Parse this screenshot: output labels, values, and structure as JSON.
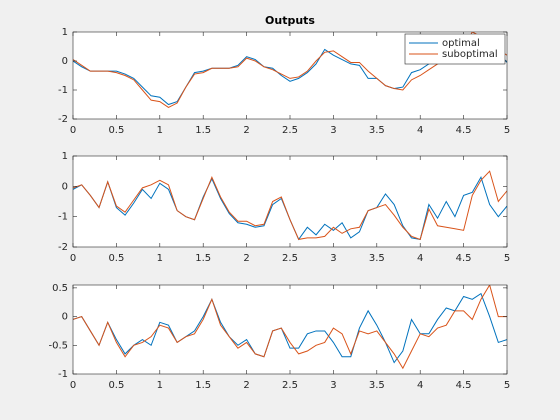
{
  "chart_data": [
    {
      "type": "line",
      "title": "Outputs",
      "x": [
        0,
        0.1,
        0.2,
        0.3,
        0.4,
        0.5,
        0.6,
        0.7,
        0.8,
        0.9,
        1,
        1.1,
        1.2,
        1.3,
        1.4,
        1.5,
        1.6,
        1.7,
        1.8,
        1.9,
        2,
        2.1,
        2.2,
        2.3,
        2.4,
        2.5,
        2.6,
        2.7,
        2.8,
        2.9,
        3,
        3.1,
        3.2,
        3.3,
        3.4,
        3.5,
        3.6,
        3.7,
        3.8,
        3.9,
        4,
        4.1,
        4.2,
        4.3,
        4.4,
        4.5,
        4.6,
        4.7,
        4.8,
        4.9,
        5
      ],
      "series": [
        {
          "name": "optimal",
          "color": "#0072bd",
          "values": [
            0,
            -0.2,
            -0.35,
            -0.35,
            -0.35,
            -0.35,
            -0.45,
            -0.6,
            -0.9,
            -1.2,
            -1.25,
            -1.5,
            -1.4,
            -0.9,
            -0.4,
            -0.35,
            -0.25,
            -0.25,
            -0.25,
            -0.15,
            0.15,
            0.05,
            -0.2,
            -0.25,
            -0.5,
            -0.7,
            -0.6,
            -0.4,
            -0.1,
            0.4,
            0.2,
            0.05,
            -0.1,
            -0.15,
            -0.6,
            -0.6,
            -0.85,
            -0.95,
            -0.9,
            -0.4,
            -0.3,
            -0.1,
            0.2,
            0.2,
            0.3,
            0.6,
            0.8,
            0.9,
            0.6,
            0.3,
            -0.05
          ]
        },
        {
          "name": "suboptimal",
          "color": "#d95319",
          "values": [
            0.05,
            -0.15,
            -0.35,
            -0.35,
            -0.35,
            -0.4,
            -0.5,
            -0.65,
            -1.0,
            -1.35,
            -1.4,
            -1.6,
            -1.45,
            -0.9,
            -0.45,
            -0.4,
            -0.25,
            -0.25,
            -0.25,
            -0.2,
            0.1,
            0,
            -0.2,
            -0.3,
            -0.45,
            -0.6,
            -0.55,
            -0.35,
            0,
            0.3,
            0.35,
            0.15,
            -0.05,
            -0.05,
            -0.35,
            -0.6,
            -0.85,
            -0.95,
            -1.0,
            -0.65,
            -0.5,
            -0.3,
            -0.1,
            0.1,
            0.3,
            0.5,
            1.0,
            0.85,
            0.7,
            0.4,
            0.2
          ]
        }
      ],
      "xlim": [
        0,
        5
      ],
      "xticks": [
        0,
        0.5,
        1,
        1.5,
        2,
        2.5,
        3,
        3.5,
        4,
        4.5,
        5
      ],
      "ylim": [
        -2,
        1
      ],
      "yticks": [
        -2,
        -1,
        0,
        1
      ],
      "legend": "northeast"
    },
    {
      "type": "line",
      "x": [
        0,
        0.1,
        0.2,
        0.3,
        0.4,
        0.5,
        0.6,
        0.7,
        0.8,
        0.9,
        1,
        1.1,
        1.2,
        1.3,
        1.4,
        1.5,
        1.6,
        1.7,
        1.8,
        1.9,
        2,
        2.1,
        2.2,
        2.3,
        2.4,
        2.5,
        2.6,
        2.7,
        2.8,
        2.9,
        3,
        3.1,
        3.2,
        3.3,
        3.4,
        3.5,
        3.6,
        3.7,
        3.8,
        3.9,
        4,
        4.1,
        4.2,
        4.3,
        4.4,
        4.5,
        4.6,
        4.7,
        4.8,
        4.9,
        5
      ],
      "series": [
        {
          "color": "#0072bd",
          "values": [
            -0.1,
            0.05,
            -0.3,
            -0.7,
            0.15,
            -0.7,
            -0.95,
            -0.55,
            -0.1,
            -0.4,
            0.1,
            -0.1,
            -0.8,
            -1.0,
            -1.1,
            -0.35,
            0.25,
            -0.4,
            -0.9,
            -1.2,
            -1.25,
            -1.35,
            -1.3,
            -0.6,
            -0.4,
            -1.1,
            -1.75,
            -1.35,
            -1.6,
            -1.25,
            -1.45,
            -1.2,
            -1.7,
            -1.5,
            -0.8,
            -0.7,
            -0.25,
            -0.6,
            -1.3,
            -1.7,
            -1.75,
            -0.6,
            -1.05,
            -0.5,
            -1.0,
            -0.3,
            -0.2,
            0.3,
            -0.6,
            -1.0,
            -0.65
          ]
        },
        {
          "color": "#d95319",
          "values": [
            -0.05,
            0.05,
            -0.3,
            -0.7,
            0.15,
            -0.65,
            -0.85,
            -0.45,
            -0.05,
            0.05,
            0.2,
            0.05,
            -0.8,
            -1.0,
            -1.1,
            -0.4,
            0.3,
            -0.35,
            -0.85,
            -1.15,
            -1.15,
            -1.3,
            -1.25,
            -0.5,
            -0.35,
            -1.1,
            -1.75,
            -1.7,
            -1.7,
            -1.65,
            -1.35,
            -1.55,
            -1.4,
            -1.35,
            -0.8,
            -0.7,
            -0.6,
            -0.95,
            -1.35,
            -1.65,
            -1.75,
            -0.75,
            -1.3,
            -1.35,
            -1.4,
            -1.45,
            -0.3,
            0.2,
            0.5,
            -0.5,
            -0.15
          ]
        }
      ],
      "xlim": [
        0,
        5
      ],
      "xticks": [
        0,
        0.5,
        1,
        1.5,
        2,
        2.5,
        3,
        3.5,
        4,
        4.5,
        5
      ],
      "ylim": [
        -2,
        1
      ],
      "yticks": [
        -2,
        -1,
        0,
        1
      ]
    },
    {
      "type": "line",
      "x": [
        0,
        0.1,
        0.2,
        0.3,
        0.4,
        0.5,
        0.6,
        0.7,
        0.8,
        0.9,
        1,
        1.1,
        1.2,
        1.3,
        1.4,
        1.5,
        1.6,
        1.7,
        1.8,
        1.9,
        2,
        2.1,
        2.2,
        2.3,
        2.4,
        2.5,
        2.6,
        2.7,
        2.8,
        2.9,
        3,
        3.1,
        3.2,
        3.3,
        3.4,
        3.5,
        3.6,
        3.7,
        3.8,
        3.9,
        4,
        4.1,
        4.2,
        4.3,
        4.4,
        4.5,
        4.6,
        4.7,
        4.8,
        4.9,
        5
      ],
      "series": [
        {
          "color": "#0072bd",
          "values": [
            -0.05,
            0,
            -0.25,
            -0.5,
            -0.1,
            -0.4,
            -0.65,
            -0.5,
            -0.4,
            -0.5,
            -0.1,
            -0.15,
            -0.45,
            -0.35,
            -0.25,
            0,
            0.3,
            -0.1,
            -0.35,
            -0.5,
            -0.4,
            -0.65,
            -0.7,
            -0.25,
            -0.2,
            -0.55,
            -0.55,
            -0.3,
            -0.25,
            -0.25,
            -0.45,
            -0.7,
            -0.7,
            -0.2,
            0.1,
            -0.15,
            -0.45,
            -0.8,
            -0.6,
            -0.05,
            -0.3,
            -0.3,
            -0.05,
            0.15,
            0.1,
            0.35,
            0.3,
            0.4,
            0,
            -0.45,
            -0.4
          ]
        },
        {
          "color": "#d95319",
          "values": [
            -0.05,
            0,
            -0.25,
            -0.5,
            -0.1,
            -0.45,
            -0.7,
            -0.5,
            -0.45,
            -0.35,
            -0.15,
            -0.2,
            -0.45,
            -0.35,
            -0.3,
            -0.05,
            0.3,
            -0.15,
            -0.35,
            -0.55,
            -0.45,
            -0.65,
            -0.7,
            -0.25,
            -0.2,
            -0.45,
            -0.65,
            -0.6,
            -0.5,
            -0.45,
            -0.2,
            -0.3,
            -0.65,
            -0.25,
            -0.3,
            -0.25,
            -0.45,
            -0.65,
            -0.9,
            -0.6,
            -0.3,
            -0.35,
            -0.2,
            -0.15,
            0.1,
            0.1,
            -0.05,
            0.3,
            0.55,
            0,
            0
          ]
        }
      ],
      "xlim": [
        0,
        5
      ],
      "xticks": [
        0,
        0.5,
        1,
        1.5,
        2,
        2.5,
        3,
        3.5,
        4,
        4.5,
        5
      ],
      "ylim": [
        -1,
        0.55
      ],
      "yticks": [
        -1,
        -0.5,
        0,
        0.5
      ]
    }
  ]
}
